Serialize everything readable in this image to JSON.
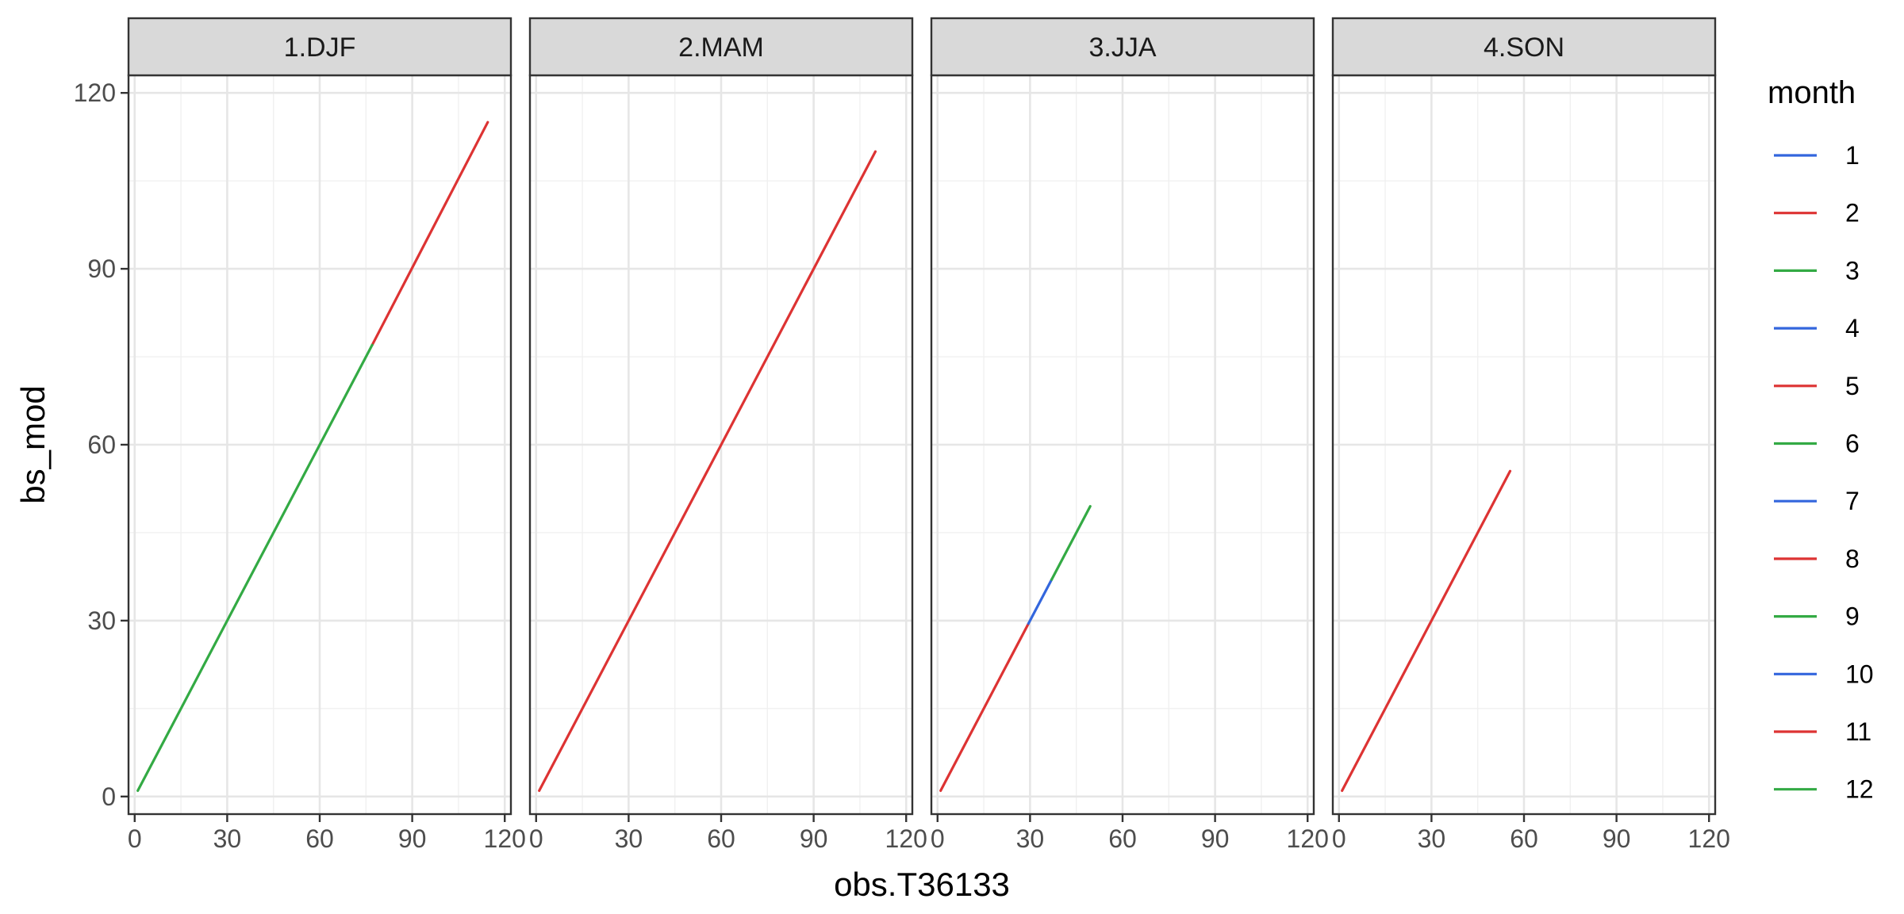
{
  "chart_data": {
    "type": "line",
    "xlabel": "obs.T36133",
    "ylabel": "bs_mod",
    "xlim": [
      -2,
      122
    ],
    "ylim": [
      -3,
      123
    ],
    "x_ticks": [
      0,
      30,
      60,
      90,
      120
    ],
    "x_tick_labels": [
      "0",
      "30",
      "60",
      "90",
      "120"
    ],
    "y_ticks": [
      0,
      30,
      60,
      90,
      120
    ],
    "y_tick_labels": [
      "0",
      "30",
      "60",
      "90",
      "120"
    ],
    "grid": true,
    "legend": {
      "title": "month",
      "position": "right",
      "entries": [
        {
          "label": "1",
          "color": "#3366dd"
        },
        {
          "label": "2",
          "color": "#dd3333"
        },
        {
          "label": "3",
          "color": "#33aa44"
        },
        {
          "label": "4",
          "color": "#3366dd"
        },
        {
          "label": "5",
          "color": "#dd3333"
        },
        {
          "label": "6",
          "color": "#33aa44"
        },
        {
          "label": "7",
          "color": "#3366dd"
        },
        {
          "label": "8",
          "color": "#dd3333"
        },
        {
          "label": "9",
          "color": "#33aa44"
        },
        {
          "label": "10",
          "color": "#3366dd"
        },
        {
          "label": "11",
          "color": "#dd3333"
        },
        {
          "label": "12",
          "color": "#33aa44"
        }
      ]
    },
    "panels": [
      {
        "strip": "1.DJF",
        "series": [
          {
            "name": "2",
            "color": "#dd3333",
            "x": [
              77,
              114.5
            ],
            "y": [
              77,
              115
            ]
          },
          {
            "name": "12",
            "color": "#33aa44",
            "x": [
              1,
              77
            ],
            "y": [
              1,
              77
            ]
          }
        ]
      },
      {
        "strip": "2.MAM",
        "series": [
          {
            "name": "5",
            "color": "#dd3333",
            "x": [
              1,
              110
            ],
            "y": [
              1,
              110
            ]
          }
        ]
      },
      {
        "strip": "3.JJA",
        "series": [
          {
            "name": "8",
            "color": "#dd3333",
            "x": [
              1,
              29.5
            ],
            "y": [
              1,
              29.5
            ]
          },
          {
            "name": "7",
            "color": "#3366dd",
            "x": [
              29.5,
              37
            ],
            "y": [
              29.5,
              37
            ]
          },
          {
            "name": "6",
            "color": "#33aa44",
            "x": [
              37,
              49.5
            ],
            "y": [
              37,
              49.5
            ]
          }
        ]
      },
      {
        "strip": "4.SON",
        "series": [
          {
            "name": "11",
            "color": "#dd3333",
            "x": [
              1,
              55.5
            ],
            "y": [
              1,
              55.5
            ]
          }
        ]
      }
    ]
  }
}
